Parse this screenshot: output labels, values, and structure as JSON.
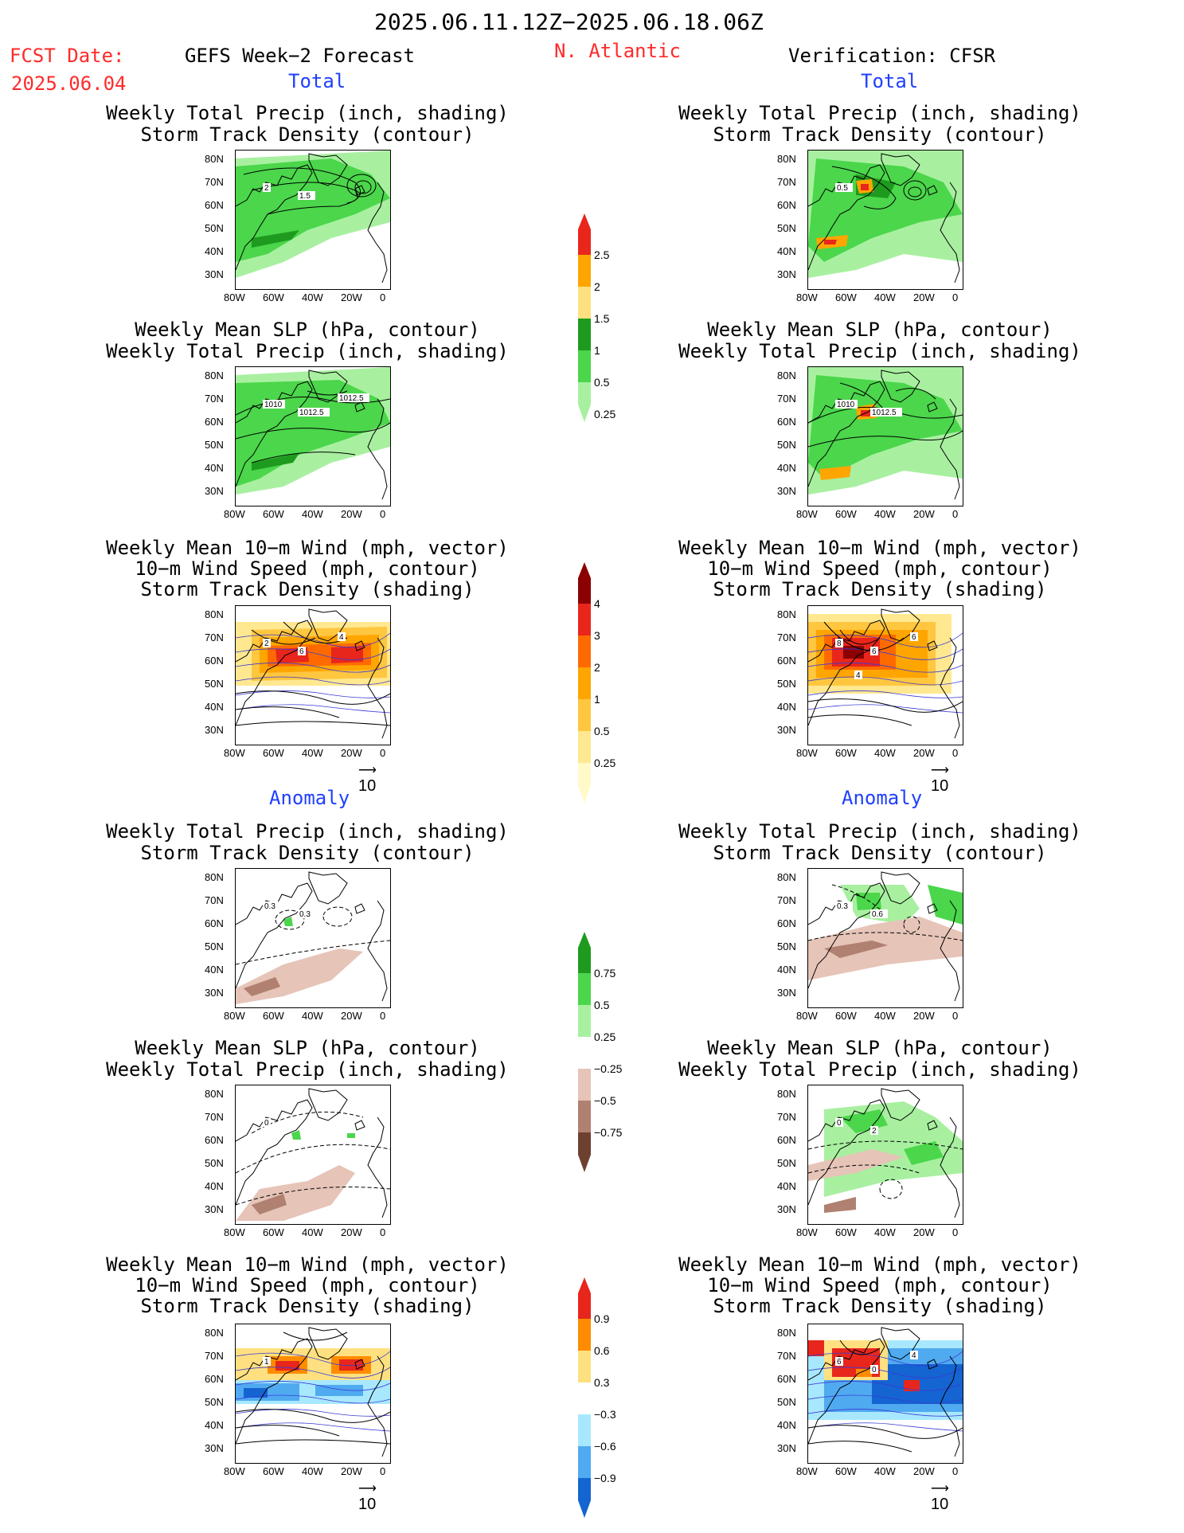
{
  "header": {
    "period": "2025.06.11.12Z−2025.06.18.06Z",
    "fcst_label": "FCST Date:",
    "fcst_date": "2025.06.04",
    "model": "GEFS Week−2 Forecast",
    "region": "N. Atlantic",
    "verification": "Verification: CFSR"
  },
  "sections": {
    "total": "Total",
    "anomaly": "Anomaly"
  },
  "titles": {
    "precip_storm": [
      "Weekly Total Precip (inch, shading)",
      "Storm Track Density (contour)"
    ],
    "slp_precip": [
      "Weekly Mean SLP (hPa, contour)",
      "Weekly Total Precip (inch, shading)"
    ],
    "wind": [
      "Weekly Mean 10−m Wind (mph, vector)",
      "10−m Wind Speed (mph, contour)",
      "Storm Track Density (shading)"
    ]
  },
  "axes": {
    "lat": [
      "80N",
      "70N",
      "60N",
      "50N",
      "40N",
      "30N"
    ],
    "lon": [
      "80W",
      "60W",
      "40W",
      "20W",
      "0"
    ]
  },
  "vector_ref": "10",
  "colorbars": {
    "precip": {
      "labels": [
        "2.5",
        "2",
        "1.5",
        "1",
        "0.5",
        "0.25"
      ],
      "colors": [
        "#e8261c",
        "#ffa500",
        "#ffe080",
        "#1e9b1e",
        "#4bd64b",
        "#a8f0a0"
      ]
    },
    "storm": {
      "labels": [
        "4",
        "3",
        "2",
        "1",
        "0.5",
        "0.25"
      ],
      "colors": [
        "#8b0000",
        "#e8261c",
        "#ff6a00",
        "#ffa500",
        "#ffc640",
        "#ffe890",
        "#fffac8"
      ]
    },
    "precip_anom": {
      "labels": [
        "0.75",
        "0.5",
        "0.25",
        "−0.25",
        "−0.5",
        "−0.75"
      ],
      "colors": [
        "#1e9b1e",
        "#4bd64b",
        "#a8f0a0",
        "#ffffff",
        "#e6c4b8",
        "#b08070",
        "#6e4030"
      ]
    },
    "storm_anom": {
      "labels": [
        "0.9",
        "0.6",
        "0.3",
        "−0.3",
        "−0.6",
        "−0.9"
      ],
      "colors": [
        "#e8261c",
        "#ff8c00",
        "#ffe080",
        "#ffffff",
        "#a8e8ff",
        "#50aaf0",
        "#1464d2"
      ]
    }
  },
  "map_labels": {
    "f1": [
      "2",
      "1.5"
    ],
    "v1": [
      "0.5"
    ],
    "f2": [
      "1010",
      "1012.5",
      "1012.5"
    ],
    "v2": [
      "1010",
      "1012.5"
    ],
    "f3": [
      "2",
      "6",
      "4"
    ],
    "v3": [
      "8",
      "6",
      "6",
      "4"
    ],
    "f4": [
      "0.3",
      "0.3"
    ],
    "v4": [
      "0.3",
      "0.6"
    ],
    "f5": [
      "0"
    ],
    "v5": [
      "0",
      "2"
    ],
    "f6": [
      "1"
    ],
    "v6": [
      "6",
      "0",
      "4"
    ]
  }
}
